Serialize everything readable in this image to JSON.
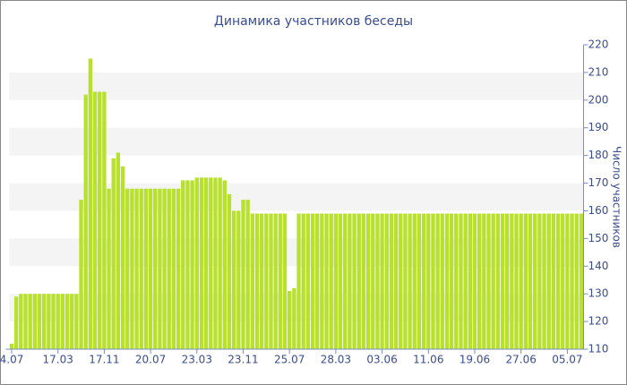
{
  "chart_data": {
    "type": "bar",
    "title": "Динамика участников беседы",
    "y_axis_label": "Число участников",
    "categories": [
      "4.07",
      null,
      null,
      null,
      null,
      null,
      null,
      null,
      null,
      null,
      "17.03",
      null,
      null,
      null,
      null,
      null,
      null,
      null,
      null,
      null,
      "17.11",
      null,
      null,
      null,
      null,
      null,
      null,
      null,
      null,
      null,
      "20.07",
      null,
      null,
      null,
      null,
      null,
      null,
      null,
      null,
      null,
      "23.03",
      null,
      null,
      null,
      null,
      null,
      null,
      null,
      null,
      null,
      "23.11",
      null,
      null,
      null,
      null,
      null,
      null,
      null,
      null,
      null,
      "25.07",
      null,
      null,
      null,
      null,
      null,
      null,
      null,
      null,
      null,
      "28.03",
      null,
      null,
      null,
      null,
      null,
      null,
      null,
      null,
      null,
      "03.06",
      null,
      null,
      null,
      null,
      null,
      null,
      null,
      null,
      null,
      "11.06",
      null,
      null,
      null,
      null,
      null,
      null,
      null,
      null,
      null,
      "19.06",
      null,
      null,
      null,
      null,
      null,
      null,
      null,
      null,
      null,
      "27.06",
      null,
      null,
      null,
      null,
      null,
      null,
      null,
      null,
      null,
      "05.07",
      null,
      null,
      null
    ],
    "values": [
      112,
      129,
      130,
      130,
      130,
      130,
      130,
      130,
      130,
      130,
      130,
      130,
      130,
      130,
      130,
      164,
      202,
      215,
      203,
      203,
      203,
      168,
      179,
      181,
      176,
      168,
      168,
      168,
      168,
      168,
      168,
      168,
      168,
      168,
      168,
      168,
      168,
      171,
      171,
      171,
      172,
      172,
      172,
      172,
      172,
      172,
      171,
      166,
      160,
      160,
      164,
      164,
      159,
      159,
      159,
      159,
      159,
      159,
      159,
      159,
      131,
      132,
      159,
      159,
      159,
      159,
      159,
      159,
      159,
      159,
      159,
      159,
      159,
      159,
      159,
      159,
      159,
      159,
      159,
      159,
      159,
      159,
      159,
      159,
      159,
      159,
      159,
      159,
      159,
      159,
      159,
      159,
      159,
      159,
      159,
      159,
      159,
      159,
      159,
      159,
      159,
      159,
      159,
      159,
      159,
      159,
      159,
      159,
      159,
      159,
      159,
      159,
      159,
      159,
      159,
      159,
      159,
      159,
      159,
      159,
      159,
      159,
      159,
      159
    ],
    "color": "#b8e02e",
    "ylim": [
      110,
      220
    ],
    "yticks": [
      110,
      120,
      130,
      140,
      150,
      160,
      170,
      180,
      190,
      200,
      210,
      220
    ],
    "grid": true
  }
}
